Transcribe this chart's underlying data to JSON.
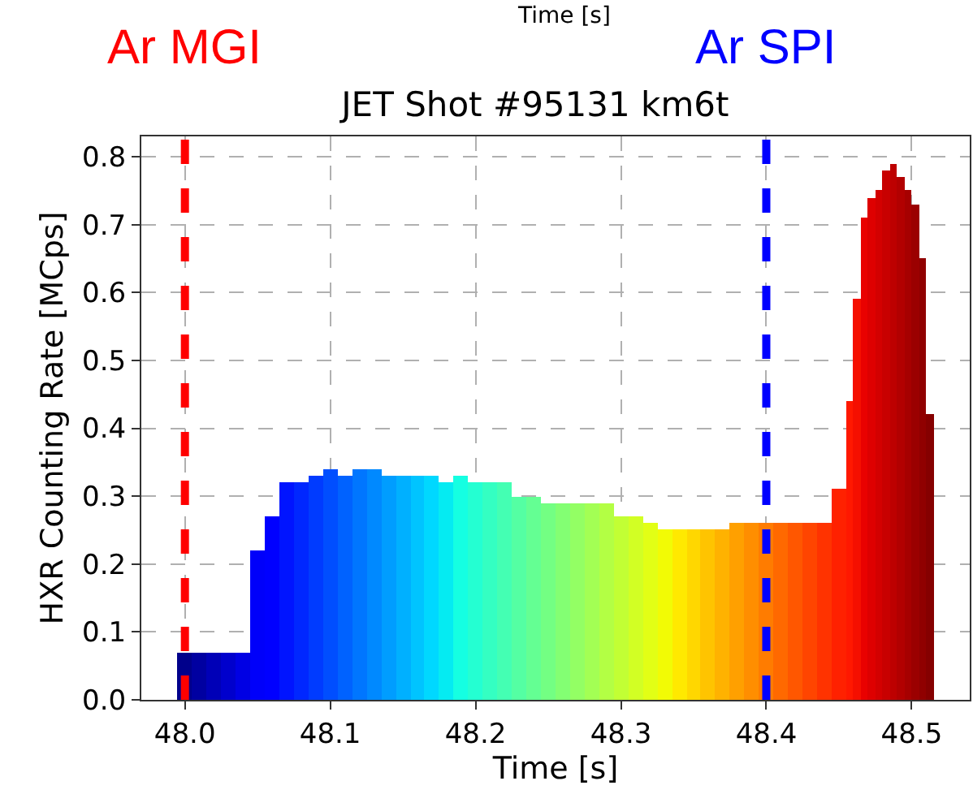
{
  "chart_data": {
    "type": "histogram",
    "title": "JET Shot #95131 km6t",
    "xlabel": "Time [s]",
    "ylabel": "HXR Counting Rate [MCps]",
    "annotations": [
      "Time [s]"
    ],
    "bins": [
      47.995,
      48.005,
      48.015,
      48.025,
      48.035,
      48.045,
      48.055,
      48.065,
      48.075,
      48.085,
      48.095,
      48.105,
      48.115,
      48.125,
      48.135,
      48.145,
      48.155,
      48.165,
      48.175,
      48.185,
      48.195,
      48.205,
      48.215,
      48.225,
      48.235,
      48.245,
      48.255,
      48.265,
      48.275,
      48.285,
      48.295,
      48.305,
      48.315,
      48.325,
      48.335,
      48.345,
      48.355,
      48.365,
      48.375,
      48.385,
      48.395,
      48.405,
      48.415,
      48.425,
      48.435,
      48.445,
      48.455,
      48.46,
      48.465,
      48.47,
      48.475,
      48.48,
      48.485,
      48.49,
      48.495,
      48.5,
      48.505,
      48.51,
      48.515
    ],
    "values": [
      0.07,
      0.07,
      0.07,
      0.07,
      0.07,
      0.22,
      0.27,
      0.32,
      0.32,
      0.33,
      0.34,
      0.33,
      0.34,
      0.34,
      0.33,
      0.33,
      0.33,
      0.33,
      0.32,
      0.33,
      0.32,
      0.32,
      0.32,
      0.3,
      0.3,
      0.29,
      0.29,
      0.29,
      0.29,
      0.29,
      0.27,
      0.27,
      0.26,
      0.25,
      0.25,
      0.25,
      0.25,
      0.25,
      0.26,
      0.26,
      0.26,
      0.26,
      0.26,
      0.26,
      0.26,
      0.31,
      0.44,
      0.59,
      0.71,
      0.74,
      0.75,
      0.78,
      0.79,
      0.77,
      0.75,
      0.73,
      0.65,
      0.42
    ],
    "colors": [
      "#00008b",
      "#0000a1",
      "#0000b7",
      "#0000cd",
      "#0000e4",
      "#0000fa",
      "#0000ff",
      "#0014ff",
      "#0027ff",
      "#003bff",
      "#004eff",
      "#0062ff",
      "#0076ff",
      "#0089ff",
      "#009dff",
      "#00b0ff",
      "#00c4ff",
      "#00d8ff",
      "#05ebf2",
      "#15ffe2",
      "#24ffd2",
      "#34ffc2",
      "#44ffb3",
      "#54ffa3",
      "#64ff93",
      "#73ff83",
      "#83ff73",
      "#93ff64",
      "#a3ff54",
      "#b3ff44",
      "#c2ff34",
      "#d2ff24",
      "#e2ff15",
      "#f2fb05",
      "#ffe900",
      "#ffd700",
      "#ffc400",
      "#ffb200",
      "#ffa000",
      "#ff8e00",
      "#ff7c00",
      "#ff6900",
      "#ff5700",
      "#ff4500",
      "#ff3300",
      "#ff2100",
      "#ff1800",
      "#f50f00",
      "#e90100",
      "#de0000",
      "#d30000",
      "#c80000",
      "#bd0000",
      "#b20000",
      "#a60000",
      "#9b0000",
      "#900000",
      "#850000"
    ],
    "xlim": [
      47.97,
      48.54
    ],
    "xticks": [
      {
        "value": 48.0,
        "label": "48.0"
      },
      48.1,
      48.2,
      48.3,
      48.4,
      48.5
    ],
    "ylim": [
      0,
      0.83
    ],
    "yticks": [
      {
        "value": 0,
        "label": "0.0"
      },
      0.1,
      0.2,
      0.3,
      0.4,
      0.5,
      0.6,
      0.7,
      0.8
    ],
    "ref_lines": [
      {
        "axis": "x",
        "value": 48.0,
        "label": "Ar MGI",
        "color": "#ff0000",
        "line_style": "dashed"
      },
      {
        "axis": "x",
        "value": 48.4,
        "label": "Ar SPI",
        "color": "#0000ff",
        "line_style": "dashed"
      }
    ],
    "grid": true
  }
}
